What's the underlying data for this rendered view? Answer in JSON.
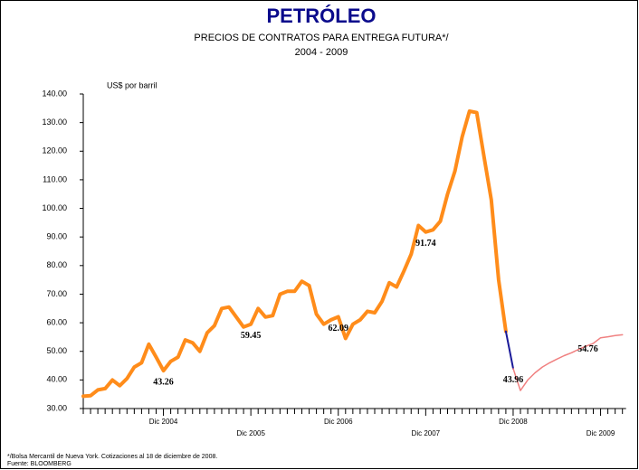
{
  "chart_data": {
    "type": "line",
    "title": "PETRÓLEO",
    "subtitle": [
      "PRECIOS DE CONTRATOS PARA ENTREGA FUTURA*/",
      "2004  -  2009"
    ],
    "y_label": "US$ por barril",
    "footnotes": [
      "*/Bolsa Mercantil de Nueva York. Cotizaciones al 18 de diciembre de 2008.",
      "Fuente: BLOOMBERG"
    ],
    "categories": [
      null,
      null,
      null,
      null,
      null,
      null,
      null,
      null,
      null,
      null,
      null,
      "Dic 2004",
      null,
      null,
      null,
      null,
      null,
      null,
      null,
      null,
      null,
      null,
      null,
      "Dic 2005",
      null,
      null,
      null,
      null,
      null,
      null,
      null,
      null,
      null,
      null,
      null,
      "Dic 2006",
      null,
      null,
      null,
      null,
      null,
      null,
      null,
      null,
      null,
      null,
      null,
      "Dic 2007",
      null,
      null,
      null,
      null,
      null,
      null,
      null,
      null,
      null,
      null,
      null,
      "Dic 2008",
      null,
      null,
      null,
      null,
      null,
      null,
      null,
      null,
      null,
      null,
      null,
      "Dic 2009",
      null,
      null,
      null
    ],
    "series": [
      {
        "color": "#ff8c1a",
        "width": 4,
        "values": [
          34.3,
          34.5,
          36.5,
          37,
          40,
          38,
          40.5,
          44.5,
          46,
          52.5,
          48,
          43.26,
          46.5,
          48,
          54,
          53,
          50,
          56.5,
          59,
          65,
          65.5,
          62,
          58.5,
          59.45,
          65,
          62,
          62.5,
          70,
          71,
          71,
          74.5,
          73,
          63,
          59.5,
          61,
          62.09,
          54.5,
          59.5,
          61,
          64,
          63.5,
          67.5,
          74,
          72.5,
          78,
          84,
          94,
          91.74,
          92.5,
          95.5,
          105,
          113,
          125,
          134,
          133.5,
          118,
          103,
          75,
          57,
          null,
          null,
          null,
          null,
          null,
          null,
          null,
          null,
          null,
          null,
          null,
          null,
          null,
          null,
          null,
          null
        ]
      },
      {
        "color": "#1a1a99",
        "width": 2,
        "values": [
          null,
          null,
          null,
          null,
          null,
          null,
          null,
          null,
          null,
          null,
          null,
          null,
          null,
          null,
          null,
          null,
          null,
          null,
          null,
          null,
          null,
          null,
          null,
          null,
          null,
          null,
          null,
          null,
          null,
          null,
          null,
          null,
          null,
          null,
          null,
          null,
          null,
          null,
          null,
          null,
          null,
          null,
          null,
          null,
          null,
          null,
          null,
          null,
          null,
          null,
          null,
          null,
          null,
          null,
          null,
          null,
          null,
          null,
          57,
          43.96,
          null,
          null,
          null,
          null,
          null,
          null,
          null,
          null,
          null,
          null,
          null,
          null,
          null,
          null,
          null
        ]
      },
      {
        "color": "#f08080",
        "width": 1.5,
        "values": [
          null,
          null,
          null,
          null,
          null,
          null,
          null,
          null,
          null,
          null,
          null,
          null,
          null,
          null,
          null,
          null,
          null,
          null,
          null,
          null,
          null,
          null,
          null,
          null,
          null,
          null,
          null,
          null,
          null,
          null,
          null,
          null,
          null,
          null,
          null,
          null,
          null,
          null,
          null,
          null,
          null,
          null,
          null,
          null,
          null,
          null,
          null,
          null,
          null,
          null,
          null,
          null,
          null,
          null,
          null,
          null,
          null,
          null,
          null,
          43.96,
          36.3,
          40,
          42.5,
          44.5,
          46,
          47.3,
          48.5,
          49.5,
          50.7,
          51.8,
          52.8,
          54.76,
          55.1,
          55.5,
          55.8
        ]
      }
    ],
    "value_labels": [
      {
        "series": 0,
        "index": 11,
        "label": "43.26"
      },
      {
        "series": 0,
        "index": 23,
        "label": "59.45"
      },
      {
        "series": 0,
        "index": 35,
        "label": "62.09"
      },
      {
        "series": 0,
        "index": 47,
        "label": "91.74"
      },
      {
        "series": 1,
        "index": 59,
        "label": "43.96"
      },
      {
        "series": 2,
        "index": 71,
        "label": "54.76"
      }
    ],
    "ylim": [
      30,
      140
    ],
    "yticks": [
      {
        "value": 30,
        "label": "30.00"
      },
      {
        "value": 40,
        "label": "40.00"
      },
      {
        "value": 50,
        "label": "50.00"
      },
      {
        "value": 60,
        "label": "60.00"
      },
      {
        "value": 70,
        "label": "70.00"
      },
      {
        "value": 80,
        "label": "80.00"
      },
      {
        "value": 90,
        "label": "90.00"
      },
      {
        "value": 100,
        "label": "100.00"
      },
      {
        "value": 110,
        "label": "110.00"
      },
      {
        "value": 120,
        "label": "120.00"
      },
      {
        "value": 130,
        "label": "130.00"
      },
      {
        "value": 140,
        "label": "140.00"
      }
    ],
    "grid": false
  }
}
